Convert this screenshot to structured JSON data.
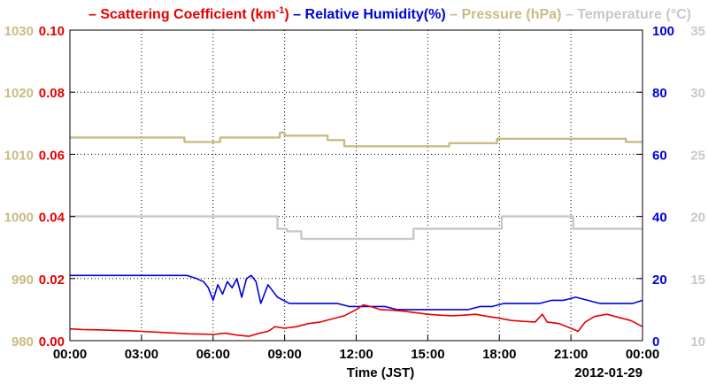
{
  "chart_data": {
    "type": "line",
    "legend": [
      {
        "name": "Scattering Coefficient (km",
        "sup": "-1",
        "tail": ")",
        "color": "#e60000"
      },
      {
        "name": "Relative Humidity(%)",
        "color": "#0000dd"
      },
      {
        "name": "Pressure (hPa)",
        "color": "#c8bb84"
      },
      {
        "name": "Temperature (°C)",
        "color": "#c8c8c8"
      }
    ],
    "x_ticks": [
      "00:00",
      "03:00",
      "06:00",
      "09:00",
      "12:00",
      "15:00",
      "18:00",
      "21:00",
      "00:00"
    ],
    "xlabel": "Time (JST)",
    "date_label": "2012-01-29",
    "axes": {
      "scatter": {
        "ticks": [
          "0.00",
          "0.02",
          "0.04",
          "0.06",
          "0.08",
          "0.10"
        ],
        "range": [
          0,
          0.1
        ]
      },
      "pressure": {
        "ticks": [
          "980",
          "990",
          "1000",
          "1010",
          "1020",
          "1030"
        ],
        "range": [
          980,
          1030
        ]
      },
      "humidity": {
        "ticks": [
          "0",
          "20",
          "40",
          "60",
          "80",
          "100"
        ],
        "range": [
          0,
          100
        ]
      },
      "temperature": {
        "ticks": [
          "10",
          "15",
          "20",
          "25",
          "30",
          "35"
        ],
        "range": [
          10,
          35
        ]
      }
    },
    "series": [
      {
        "key": "pressure",
        "x": [
          0,
          4.8,
          4.8,
          6.3,
          6.3,
          8.8,
          8.8,
          9.0,
          9.0,
          10.8,
          10.8,
          11.5,
          11.5,
          14.3,
          14.3,
          15.9,
          15.9,
          17.9,
          17.9,
          23.3,
          23.3,
          24
        ],
        "values": [
          1012.7,
          1012.7,
          1012.0,
          1012.0,
          1012.7,
          1012.7,
          1013.5,
          1013.5,
          1013.0,
          1013.0,
          1012.3,
          1012.3,
          1011.3,
          1011.3,
          1011.3,
          1011.3,
          1011.8,
          1011.8,
          1012.5,
          1012.5,
          1012.0,
          1012.0
        ]
      },
      {
        "key": "temperature",
        "x": [
          0,
          8.7,
          8.7,
          9.1,
          9.1,
          9.7,
          9.7,
          14.4,
          14.4,
          18.1,
          18.1,
          21.1,
          21.1,
          24
        ],
        "values": [
          20,
          20,
          19,
          19,
          18.8,
          18.8,
          18.2,
          18.2,
          19.0,
          19.0,
          20,
          20,
          19.0,
          19.0
        ]
      },
      {
        "key": "humidity",
        "x": [
          0,
          4.9,
          5.3,
          5.6,
          5.8,
          6.0,
          6.2,
          6.4,
          6.6,
          6.8,
          7.0,
          7.2,
          7.4,
          7.6,
          7.8,
          8.0,
          8.3,
          8.5,
          8.7,
          9.2,
          9.7,
          10.2,
          10.7,
          11.2,
          11.7,
          12.2,
          12.7,
          13.2,
          13.7,
          14.2,
          14.7,
          15.2,
          15.7,
          16.2,
          16.7,
          17.2,
          17.7,
          18.2,
          18.7,
          19.2,
          19.7,
          20.2,
          20.7,
          21.2,
          21.7,
          22.2,
          22.7,
          23.2,
          23.6,
          24
        ],
        "values": [
          21,
          21,
          20,
          19,
          17,
          13,
          18,
          15,
          19,
          17,
          20,
          14,
          20,
          21,
          19,
          12,
          18,
          16,
          14,
          12,
          12,
          12,
          12,
          12,
          11,
          11,
          11,
          11,
          10,
          10,
          10,
          10,
          10,
          10,
          10,
          11,
          11,
          12,
          12,
          12,
          12,
          13,
          13,
          14,
          13,
          12,
          12,
          12,
          12,
          13
        ]
      },
      {
        "key": "scatter",
        "x": [
          0,
          0.5,
          1,
          1.5,
          2,
          2.5,
          3,
          3.5,
          4,
          4.5,
          5,
          5.5,
          6,
          6.5,
          7,
          7.5,
          8,
          8.3,
          8.6,
          9,
          9.5,
          10,
          10.5,
          11,
          11.5,
          12,
          12.3,
          12.6,
          13,
          13.5,
          14,
          14.5,
          15,
          15.5,
          16,
          16.5,
          17,
          17.5,
          18,
          18.5,
          19,
          19.5,
          19.8,
          20,
          20.5,
          21,
          21.3,
          21.6,
          22,
          22.5,
          23,
          23.5,
          24
        ],
        "values": [
          0.0038,
          0.0036,
          0.0035,
          0.0034,
          0.0033,
          0.0032,
          0.003,
          0.0028,
          0.0026,
          0.0024,
          0.0022,
          0.0021,
          0.002,
          0.0024,
          0.0018,
          0.0014,
          0.0025,
          0.003,
          0.0045,
          0.004,
          0.0045,
          0.0055,
          0.006,
          0.007,
          0.008,
          0.01,
          0.0115,
          0.011,
          0.01,
          0.0098,
          0.0095,
          0.009,
          0.0085,
          0.0082,
          0.008,
          0.0082,
          0.0085,
          0.0078,
          0.0072,
          0.0065,
          0.0062,
          0.006,
          0.0085,
          0.006,
          0.0055,
          0.004,
          0.003,
          0.006,
          0.0078,
          0.0085,
          0.0075,
          0.0065,
          0.0045
        ]
      }
    ]
  }
}
